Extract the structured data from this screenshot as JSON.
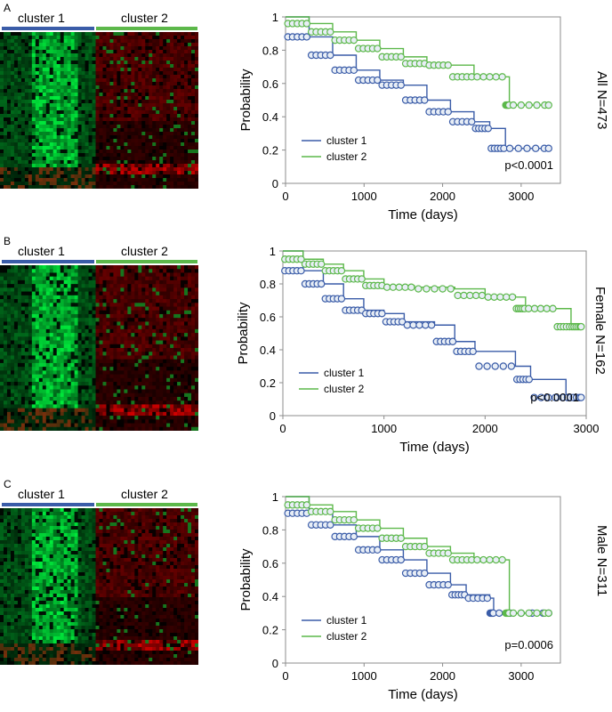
{
  "colors": {
    "cluster1": "#3a5ca8",
    "cluster2": "#5cb84a",
    "axis": "#8c8c8c"
  },
  "chart_data": [
    {
      "type": "line",
      "panel": "A",
      "heatmap_labels": [
        "cluster 1",
        "cluster 2"
      ],
      "side_label": "All N=473",
      "xlabel": "Time (days)",
      "ylabel": "Probability",
      "xlim": [
        0,
        3500
      ],
      "ylim": [
        0,
        1
      ],
      "xticks": [
        0,
        1000,
        2000,
        3000
      ],
      "yticks": [
        0,
        0.2,
        0.4,
        0.6,
        0.8,
        1
      ],
      "ytick_labels": [
        "0",
        "0.2",
        "0.4",
        "0.6",
        "0.8",
        "1"
      ],
      "annotation": "p<0.0001",
      "legend": [
        "cluster 1",
        "cluster 2"
      ],
      "series": [
        {
          "name": "cluster 1",
          "x": [
            0,
            300,
            600,
            900,
            1200,
            1500,
            1800,
            2100,
            2400,
            2600,
            2800,
            3350
          ],
          "y": [
            1,
            0.88,
            0.77,
            0.68,
            0.62,
            0.59,
            0.5,
            0.43,
            0.37,
            0.33,
            0.21,
            0.21
          ]
        },
        {
          "name": "cluster 2",
          "x": [
            0,
            300,
            600,
            900,
            1200,
            1500,
            1800,
            2100,
            2400,
            2800,
            2850,
            3350
          ],
          "y": [
            1,
            0.96,
            0.91,
            0.86,
            0.81,
            0.76,
            0.72,
            0.71,
            0.64,
            0.64,
            0.47,
            0.47
          ]
        }
      ]
    },
    {
      "type": "line",
      "panel": "B",
      "heatmap_labels": [
        "cluster 1",
        "cluster 2"
      ],
      "side_label": "Female N=162",
      "xlabel": "Time (days)",
      "ylabel": "Probability",
      "xlim": [
        0,
        3000
      ],
      "ylim": [
        0,
        1
      ],
      "xticks": [
        0,
        1000,
        2000,
        3000
      ],
      "yticks": [
        0,
        0.2,
        0.4,
        0.6,
        0.8,
        1
      ],
      "ytick_labels": [
        "0",
        "0.2",
        "0.4",
        "0.6",
        "0.8",
        "1"
      ],
      "annotation": "p<0.0001",
      "legend": [
        "cluster 1",
        "cluster 2"
      ],
      "series": [
        {
          "name": "cluster 1",
          "x": [
            0,
            200,
            400,
            600,
            800,
            1000,
            1200,
            1500,
            1700,
            1900,
            2300,
            2450,
            2800,
            2950
          ],
          "y": [
            1,
            0.88,
            0.8,
            0.71,
            0.64,
            0.62,
            0.57,
            0.55,
            0.45,
            0.39,
            0.3,
            0.22,
            0.11,
            0.11
          ]
        },
        {
          "name": "cluster 2",
          "x": [
            0,
            200,
            400,
            600,
            800,
            1000,
            1300,
            1700,
            2000,
            2300,
            2400,
            2700,
            2850,
            2950
          ],
          "y": [
            1,
            0.95,
            0.92,
            0.88,
            0.83,
            0.79,
            0.78,
            0.77,
            0.73,
            0.72,
            0.65,
            0.65,
            0.54,
            0.54
          ]
        }
      ]
    },
    {
      "type": "line",
      "panel": "C",
      "heatmap_labels": [
        "cluster 1",
        "cluster 2"
      ],
      "side_label": "Male N=311",
      "xlabel": "Time (days)",
      "ylabel": "Probability",
      "xlim": [
        0,
        3500
      ],
      "ylim": [
        0,
        1
      ],
      "xticks": [
        0,
        1000,
        2000,
        3000
      ],
      "yticks": [
        0,
        0.2,
        0.4,
        0.6,
        0.8,
        1
      ],
      "ytick_labels": [
        "0",
        "0.2",
        "0.4",
        "0.6",
        "0.8",
        "1"
      ],
      "annotation": "p=0.0006",
      "legend": [
        "cluster 1",
        "cluster 2"
      ],
      "series": [
        {
          "name": "cluster 1",
          "x": [
            0,
            300,
            600,
            900,
            1200,
            1500,
            1800,
            2100,
            2300,
            2600,
            2650,
            3350
          ],
          "y": [
            1,
            0.9,
            0.83,
            0.76,
            0.68,
            0.62,
            0.54,
            0.47,
            0.41,
            0.39,
            0.3,
            0.3
          ]
        },
        {
          "name": "cluster 2",
          "x": [
            0,
            300,
            600,
            900,
            1200,
            1500,
            1800,
            2100,
            2400,
            2800,
            2850,
            3350
          ],
          "y": [
            1,
            0.95,
            0.91,
            0.86,
            0.81,
            0.75,
            0.7,
            0.66,
            0.62,
            0.62,
            0.3,
            0.3
          ]
        }
      ]
    }
  ]
}
